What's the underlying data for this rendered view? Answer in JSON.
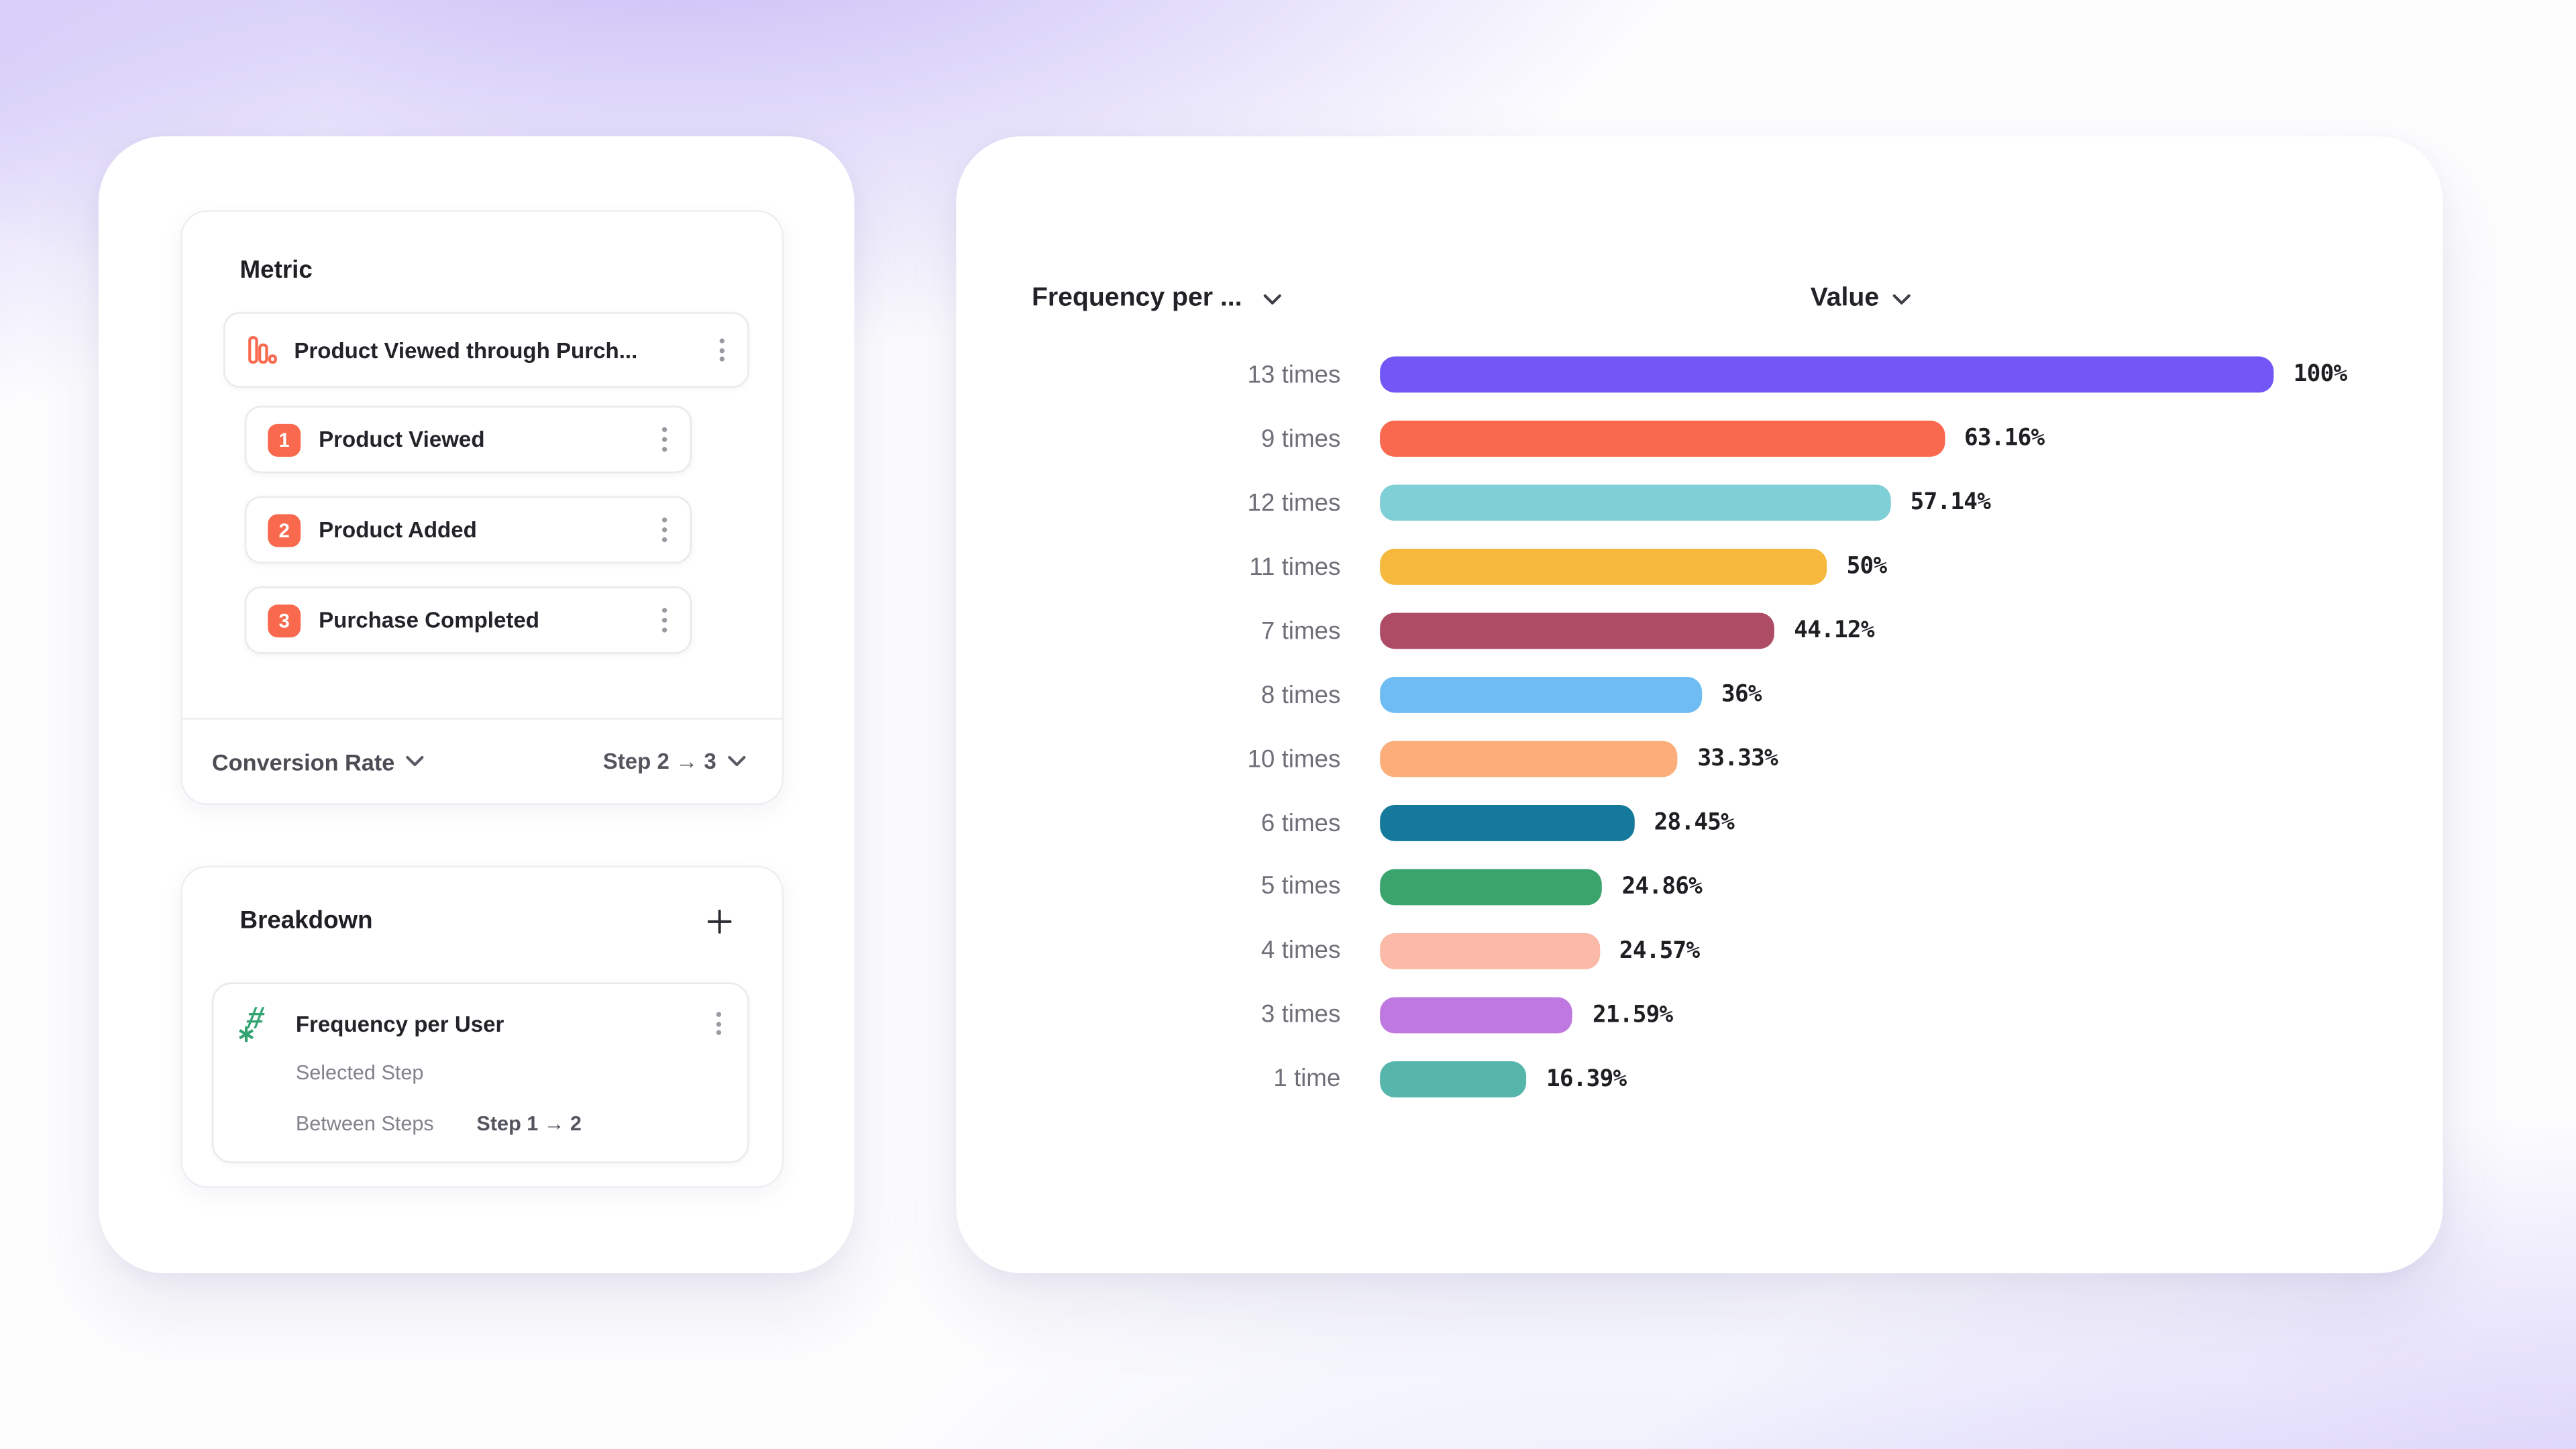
{
  "left_panel": {
    "metric": {
      "title": "Metric",
      "funnel_name": "Product Viewed through Purch...",
      "steps": [
        {
          "number": "1",
          "label": "Product Viewed"
        },
        {
          "number": "2",
          "label": "Product Added"
        },
        {
          "number": "3",
          "label": "Purchase Completed"
        }
      ],
      "footer": {
        "conversion_label": "Conversion Rate",
        "step_range": "Step 2 → 3"
      }
    },
    "breakdown": {
      "title": "Breakdown",
      "item_name": "Frequency per User",
      "selected_step_label": "Selected Step",
      "between_steps_label": "Between Steps",
      "between_steps_value": "Step 1 → 2"
    }
  },
  "chart_header": {
    "group_by": "Frequency per ...",
    "value": "Value"
  },
  "chart_data": {
    "type": "bar",
    "orientation": "horizontal",
    "title": "",
    "xlabel": "Value",
    "ylabel": "Frequency per User",
    "xlim": [
      0,
      100
    ],
    "grid": false,
    "categories": [
      "13 times",
      "9 times",
      "12 times",
      "11 times",
      "7 times",
      "8 times",
      "10 times",
      "6 times",
      "5 times",
      "4 times",
      "3 times",
      "1 time"
    ],
    "values": [
      100,
      63.16,
      57.14,
      50,
      44.12,
      36,
      33.33,
      28.45,
      24.86,
      24.57,
      21.59,
      16.39
    ],
    "value_labels": [
      "100%",
      "63.16%",
      "57.14%",
      "50%",
      "44.12%",
      "36%",
      "33.33%",
      "28.45%",
      "24.86%",
      "24.57%",
      "21.59%",
      "16.39%"
    ],
    "bar_colors": [
      "#7356f6",
      "#f8694e",
      "#7fcfd6",
      "#f6b83d",
      "#ae4c66",
      "#6ebcf3",
      "#fbae79",
      "#15799c",
      "#3ba46d",
      "#fbbaa8",
      "#bf78df",
      "#57b6ac"
    ]
  },
  "colors": {
    "step_badge": "#f8694e",
    "funnel_icon": "#f8694e",
    "hash_icon": "#33a371"
  },
  "icons": {
    "kebab": "⋮",
    "plus": "+",
    "chevron_down": "⌄",
    "arrow_right": "→",
    "numeric_property": "#∗"
  }
}
